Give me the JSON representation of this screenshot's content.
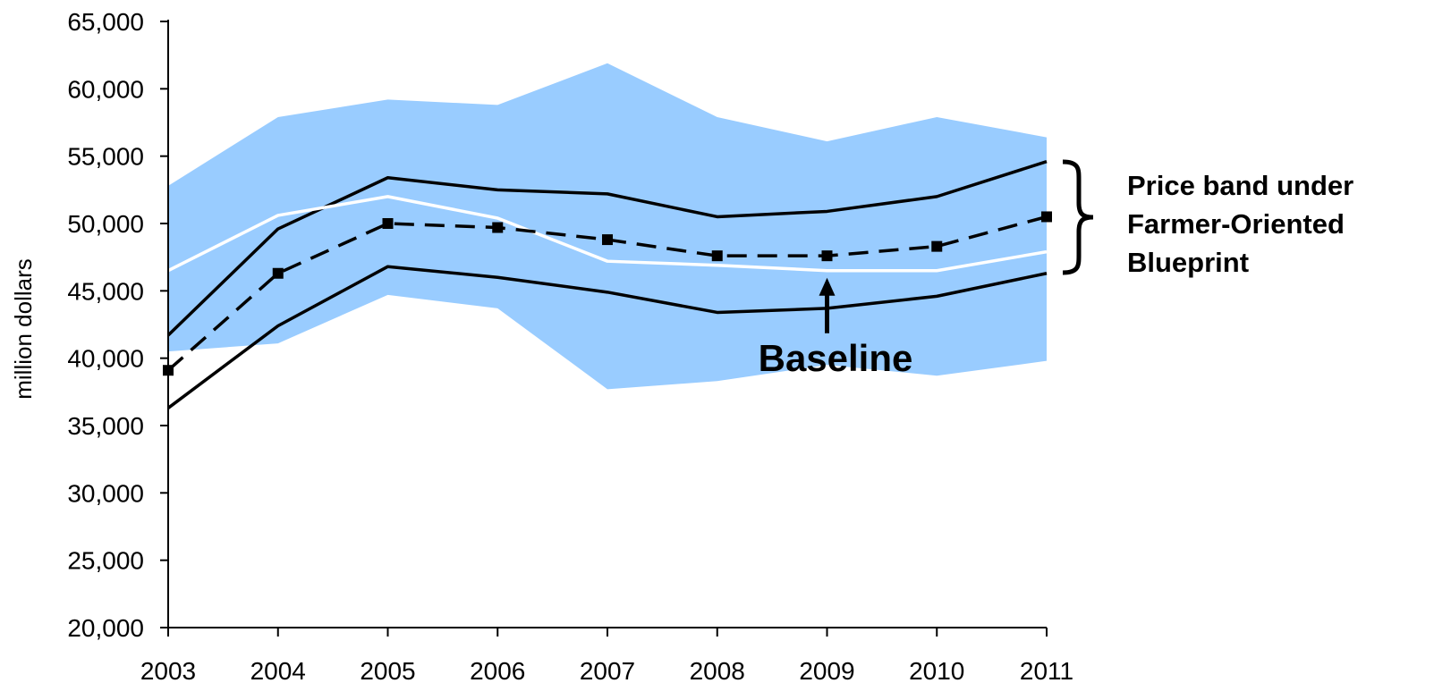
{
  "chart_data": {
    "type": "area",
    "title": "",
    "xlabel": "",
    "ylabel": "million dollars",
    "x": [
      "2003",
      "2004",
      "2005",
      "2006",
      "2007",
      "2008",
      "2009",
      "2010",
      "2011"
    ],
    "x_tick_labels": [
      "2003",
      "2004",
      "2005",
      "2006",
      "2007",
      "2008",
      "2009",
      "2010",
      "2011"
    ],
    "ylim": [
      20000,
      65000
    ],
    "y_ticks": [
      20000,
      25000,
      30000,
      35000,
      40000,
      45000,
      50000,
      55000,
      60000,
      65000
    ],
    "y_tick_labels": [
      "20,000",
      "25,000",
      "30,000",
      "35,000",
      "40,000",
      "45,000",
      "50,000",
      "55,000",
      "60,000",
      "65,000"
    ],
    "grid": false,
    "band": {
      "upper": [
        52800,
        57900,
        59200,
        58800,
        61900,
        57900,
        56100,
        57900,
        56400
      ],
      "lower": [
        40500,
        41100,
        44700,
        43700,
        37700,
        38300,
        39500,
        38700,
        39800
      ],
      "color": "#99ccff"
    },
    "series": [
      {
        "role": "upper-solid",
        "values": [
          41700,
          49600,
          53400,
          52500,
          52200,
          50500,
          50900,
          52000,
          54600
        ],
        "color": "#000000",
        "style": "solid"
      },
      {
        "role": "baseline",
        "values": [
          46500,
          50600,
          52000,
          50400,
          47200,
          46900,
          46500,
          46500,
          47900
        ],
        "color": "#ffffff",
        "style": "solid"
      },
      {
        "role": "dashed-markers",
        "values": [
          39100,
          46300,
          50000,
          49700,
          48800,
          47600,
          47600,
          48300,
          50500
        ],
        "color": "#000000",
        "style": "dashed",
        "marker": "square"
      },
      {
        "role": "lower-solid",
        "values": [
          36300,
          42400,
          46800,
          46000,
          44900,
          43400,
          43700,
          44600,
          46300
        ],
        "color": "#000000",
        "style": "solid"
      }
    ],
    "annotations": {
      "baseline_label": "Baseline",
      "baseline_arrow_at": {
        "x": "2009",
        "y": 46500
      },
      "band_label": [
        "Price band under",
        "Farmer-Oriented",
        "Blueprint"
      ],
      "bracket_range": [
        46500,
        54600
      ]
    }
  }
}
